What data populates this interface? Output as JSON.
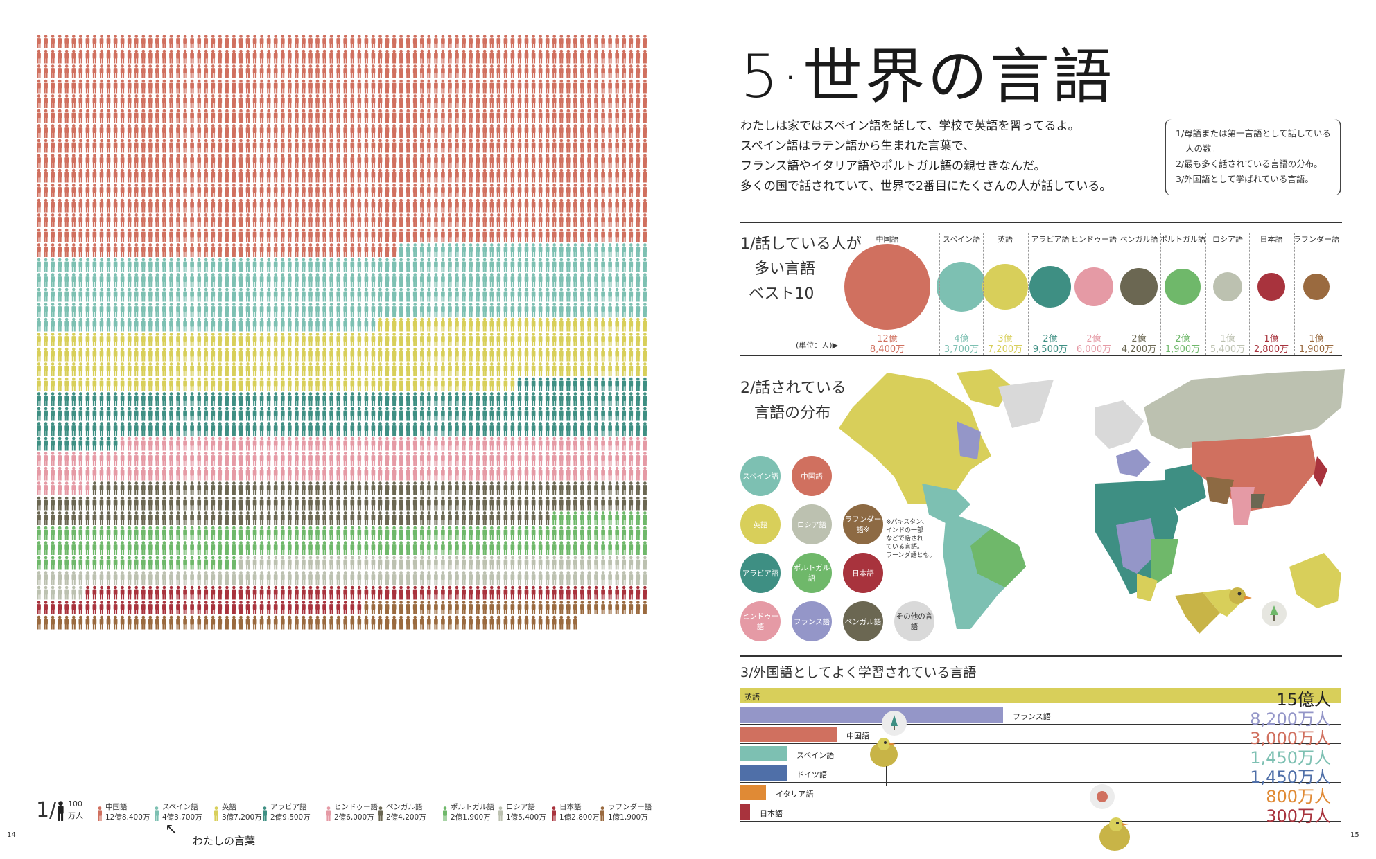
{
  "page": {
    "title": "5·世界の言語",
    "intro": [
      "わたしは家ではスペイン語を話して、学校で英語を習ってるよ。",
      "スペイン語はラテン語から生まれた言葉で、",
      "フランス語やイタリア語やポルトガル語の親せきなんだ。",
      "多くの国で話されていて、世界で2番目にたくさんの人が話している。"
    ],
    "notes": [
      "1/母語または第一言語として話している",
      "人の数。",
      "2/最も多く話されている言語の分布。",
      "3/外国語として学ばれている言語。"
    ],
    "page_left": "14",
    "page_right": "15"
  },
  "colors": {
    "chinese": "#d0705f",
    "spanish": "#7dc0b2",
    "english": "#d8cf5a",
    "arabic": "#3e8f83",
    "hindi": "#e59aa5",
    "bengali": "#6b6752",
    "portuguese": "#6fb86a",
    "russian": "#bcc1b0",
    "japanese": "#a8333d",
    "lahnda": "#9a6a3f",
    "french": "#9496c8",
    "german": "#4f6fa8",
    "italian": "#e08a35",
    "other": "#d9d9d9"
  },
  "section1": {
    "title_lines": [
      "1/話している人が",
      "多い言語",
      "ベスト10"
    ],
    "unit": "(単位：人)▶",
    "columns": [
      {
        "name": "中国語",
        "v1": "12億",
        "v2": "8,400万",
        "value": 1284000000,
        "color": "#d0705f"
      },
      {
        "name": "スペイン語",
        "v1": "4億",
        "v2": "3,700万",
        "value": 437000000,
        "color": "#7dc0b2"
      },
      {
        "name": "英語",
        "v1": "3億",
        "v2": "7,200万",
        "value": 372000000,
        "color": "#d8cf5a"
      },
      {
        "name": "アラビア語",
        "v1": "2億",
        "v2": "9,500万",
        "value": 295000000,
        "color": "#3e8f83"
      },
      {
        "name": "ヒンドゥー語",
        "v1": "2億",
        "v2": "6,000万",
        "value": 260000000,
        "color": "#e59aa5"
      },
      {
        "name": "ベンガル語",
        "v1": "2億",
        "v2": "4,200万",
        "value": 242000000,
        "color": "#6b6752"
      },
      {
        "name": "ポルトガル語",
        "v1": "2億",
        "v2": "1,900万",
        "value": 219000000,
        "color": "#6fb86a"
      },
      {
        "name": "ロシア語",
        "v1": "1億",
        "v2": "5,400万",
        "value": 154000000,
        "color": "#bcc1b0"
      },
      {
        "name": "日本語",
        "v1": "1億",
        "v2": "2,800万",
        "value": 128000000,
        "color": "#a8333d"
      },
      {
        "name": "ラフンダー語",
        "v1": "1億",
        "v2": "1,900万",
        "value": 119000000,
        "color": "#9a6a3f"
      }
    ]
  },
  "section2": {
    "title_lines": [
      "2/話されている",
      "言語の分布"
    ],
    "legend": [
      {
        "label": "スペイン語",
        "color": "#7dc0b2"
      },
      {
        "label": "中国語",
        "color": "#d0705f"
      },
      {
        "label": "英語",
        "color": "#d8cf5a"
      },
      {
        "label": "ロシア語",
        "color": "#bcc1b0"
      },
      {
        "label": "ラフンダー語※",
        "color": "#8d6a43"
      },
      {
        "label": "アラビア語",
        "color": "#3e8f83"
      },
      {
        "label": "ポルトガル語",
        "color": "#6fb86a"
      },
      {
        "label": "日本語",
        "color": "#a8333d"
      },
      {
        "label": "ヒンドゥー語",
        "color": "#e59aa5"
      },
      {
        "label": "フランス語",
        "color": "#9496c8"
      },
      {
        "label": "ベンガル語",
        "color": "#6b6752"
      },
      {
        "label": "その他の言語",
        "color": "#d9d9d9"
      }
    ],
    "note": [
      "※パキスタン、",
      "インドの一部",
      "などで話され",
      "ている言語。",
      "ラーンダ語とも。"
    ]
  },
  "section3": {
    "title": "3/外国語としてよく学習されている言語",
    "rows": [
      {
        "name": "英語",
        "value_text": "15億人",
        "value": 1500000000,
        "color": "#d8cf5a"
      },
      {
        "name": "フランス語",
        "value_text": "8,200万人",
        "value": 82000000,
        "color": "#9496c8"
      },
      {
        "name": "中国語",
        "value_text": "3,000万人",
        "value": 30000000,
        "color": "#d0705f"
      },
      {
        "name": "スペイン語",
        "value_text": "1,450万人",
        "value": 14500000,
        "color": "#7dc0b2"
      },
      {
        "name": "ドイツ語",
        "value_text": "1,450万人",
        "value": 14500000,
        "color": "#4f6fa8"
      },
      {
        "name": "イタリア語",
        "value_text": "800万人",
        "value": 8000000,
        "color": "#e08a35"
      },
      {
        "name": "日本語",
        "value_text": "300万人",
        "value": 3000000,
        "color": "#a8333d"
      }
    ]
  },
  "left_legend": {
    "prefix": "1/",
    "unit_line1": "100",
    "unit_line2": "万人",
    "caption": "わたしの言葉",
    "items": [
      {
        "name": "中国語",
        "value": "12億8,400万",
        "color": "#d0705f"
      },
      {
        "name": "スペイン語",
        "value": "4億3,700万",
        "color": "#7dc0b2"
      },
      {
        "name": "英語",
        "value": "3億7,200万",
        "color": "#d8cf5a"
      },
      {
        "name": "アラビア語",
        "value": "2億9,500万",
        "color": "#3e8f83"
      },
      {
        "name": "ヒンドゥー語",
        "value": "2億6,000万",
        "color": "#e59aa5"
      },
      {
        "name": "ベンガル語",
        "value": "2億4,200万",
        "color": "#6b6752"
      },
      {
        "name": "ポルトガル語",
        "value": "2億1,900万",
        "color": "#6fb86a"
      },
      {
        "name": "ロシア語",
        "value": "1億5,400万",
        "color": "#bcc1b0"
      },
      {
        "name": "日本語",
        "value": "1億2,800万",
        "color": "#a8333d"
      },
      {
        "name": "ラフンダー語",
        "value": "1億1,900万",
        "color": "#9a6a3f"
      }
    ]
  },
  "people_counts": [
    1284,
    437,
    372,
    295,
    260,
    242,
    219,
    154,
    128,
    119
  ]
}
